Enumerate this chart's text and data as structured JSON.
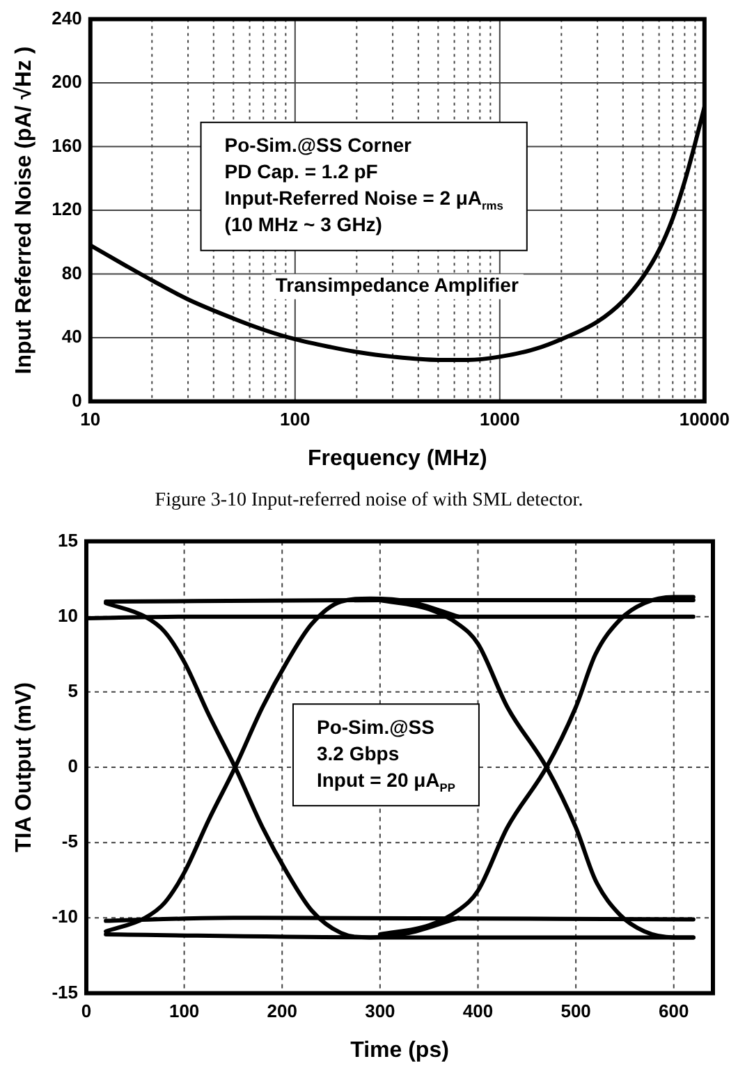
{
  "chart_data": [
    {
      "type": "line",
      "xlabel": "Frequency (MHz)",
      "ylabel": "Input Referred Noise (pA/ √Hz )",
      "log": "x",
      "grid": true,
      "xlim": [
        10,
        10000
      ],
      "xticks": [
        10,
        {
          "value": 20,
          "label": null
        },
        {
          "value": 30,
          "label": null
        },
        {
          "value": 40,
          "label": null
        },
        {
          "value": 50,
          "label": null
        },
        {
          "value": 60,
          "label": null
        },
        {
          "value": 70,
          "label": null
        },
        {
          "value": 80,
          "label": null
        },
        {
          "value": 90,
          "label": null
        },
        100,
        {
          "value": 200,
          "label": null
        },
        {
          "value": 300,
          "label": null
        },
        {
          "value": 400,
          "label": null
        },
        {
          "value": 500,
          "label": null
        },
        {
          "value": 600,
          "label": null
        },
        {
          "value": 700,
          "label": null
        },
        {
          "value": 800,
          "label": null
        },
        {
          "value": 900,
          "label": null
        },
        1000,
        {
          "value": 2000,
          "label": null
        },
        {
          "value": 3000,
          "label": null
        },
        {
          "value": 4000,
          "label": null
        },
        {
          "value": 5000,
          "label": null
        },
        {
          "value": 6000,
          "label": null
        },
        {
          "value": 7000,
          "label": null
        },
        {
          "value": 8000,
          "label": null
        },
        {
          "value": 9000,
          "label": null
        },
        10000
      ],
      "ylim": [
        0,
        240
      ],
      "yticks": [
        0,
        40,
        80,
        120,
        160,
        200,
        240
      ],
      "series": [
        {
          "color": "#000000",
          "x": [
            10,
            15,
            20,
            30,
            50,
            70,
            100,
            150,
            200,
            300,
            500,
            700,
            1000,
            1500,
            2000,
            3000,
            4000,
            5000,
            6000,
            7000,
            8000,
            9000,
            10000
          ],
          "values": [
            98,
            85,
            76,
            64,
            52,
            45,
            39,
            34,
            31,
            28,
            26,
            26,
            28,
            33,
            39,
            50,
            63,
            78,
            95,
            115,
            138,
            162,
            185
          ]
        }
      ],
      "annotations": [
        "Po-Sim.@SS Corner",
        "PD Cap. = 1.2 pF",
        "Input-Referred Noise = 2 μA$_{rms}$",
        "(10 MHz ~ 3 GHz)",
        "Transimpedance Amplifier",
        "Figure 3-10    Input-referred noise of with SML detector."
      ]
    },
    {
      "type": "line",
      "xlabel": "Time (ps)",
      "ylabel": "TIA Output (mV)",
      "grid": true,
      "xlim": [
        0,
        640
      ],
      "xticks": [
        0,
        100,
        200,
        300,
        400,
        500,
        600
      ],
      "ylim": [
        -15,
        15
      ],
      "yticks": [
        -15,
        -10,
        -5,
        0,
        5,
        10,
        15
      ],
      "series": [
        {
          "color": "#000000",
          "x": [
            0,
            100,
            300,
            620
          ],
          "values": [
            9.9,
            10,
            10,
            10
          ]
        },
        {
          "color": "#000000",
          "x": [
            20,
            300,
            620
          ],
          "values": [
            11,
            11.1,
            11.1
          ]
        },
        {
          "color": "#000000",
          "x": [
            20,
            150,
            620
          ],
          "values": [
            -10.2,
            -10,
            -10.1
          ]
        },
        {
          "color": "#000000",
          "x": [
            20,
            300,
            620
          ],
          "values": [
            -11.1,
            -11.3,
            -11.3
          ]
        },
        {
          "color": "#000000",
          "x": [
            20,
            60,
            80,
            100,
            125,
            152,
            180,
            205,
            230,
            260,
            290,
            330,
            380
          ],
          "values": [
            10.9,
            10,
            9,
            7,
            3.5,
            0,
            -4,
            -7,
            -9.5,
            -11,
            -11.3,
            -11,
            -10
          ]
        },
        {
          "color": "#000000",
          "x": [
            20,
            60,
            80,
            100,
            125,
            152,
            180,
            205,
            230,
            260,
            290,
            330,
            380
          ],
          "values": [
            -10.9,
            -10,
            -9,
            -7,
            -3.5,
            0,
            4,
            7,
            9.5,
            11,
            11.2,
            11,
            10
          ]
        },
        {
          "color": "#000000",
          "x": [
            300,
            350,
            380,
            400,
            430,
            470,
            500,
            520,
            545,
            570,
            600,
            620
          ],
          "values": [
            11.1,
            10.5,
            9.5,
            8.2,
            4,
            0,
            -4,
            -7.5,
            -9.8,
            -10.9,
            -11.3,
            -11.3
          ]
        },
        {
          "color": "#000000",
          "x": [
            300,
            350,
            380,
            400,
            430,
            470,
            500,
            520,
            545,
            570,
            600,
            620
          ],
          "values": [
            -11.1,
            -10.5,
            -9.5,
            -8.2,
            -4,
            0,
            4,
            7.5,
            9.8,
            10.9,
            11.3,
            11.3
          ]
        }
      ],
      "annotations": [
        "Po-Sim.@SS",
        "3.2 Gbps",
        "Input = 20 μA$_{PP}$"
      ]
    }
  ]
}
